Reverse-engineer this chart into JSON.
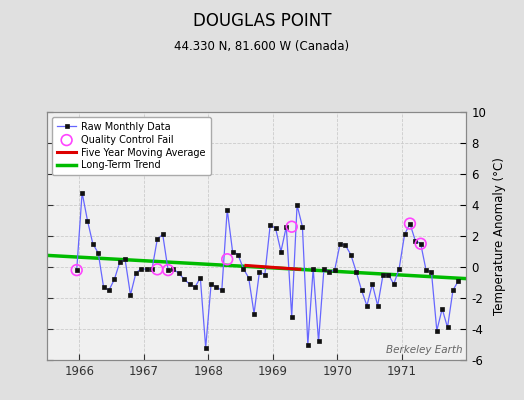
{
  "title": "DOUGLAS POINT",
  "subtitle": "44.330 N, 81.600 W (Canada)",
  "ylabel": "Temperature Anomaly (°C)",
  "watermark": "Berkeley Earth",
  "ylim": [
    -6,
    10
  ],
  "xlim": [
    1965.5,
    1972.0
  ],
  "xticks": [
    1966,
    1967,
    1968,
    1969,
    1970,
    1971
  ],
  "yticks": [
    -6,
    -4,
    -2,
    0,
    2,
    4,
    6,
    8,
    10
  ],
  "raw_x": [
    1965.958,
    1966.042,
    1966.125,
    1966.208,
    1966.292,
    1966.375,
    1966.458,
    1966.542,
    1966.625,
    1966.708,
    1966.792,
    1966.875,
    1966.958,
    1967.042,
    1967.125,
    1967.208,
    1967.292,
    1967.375,
    1967.458,
    1967.542,
    1967.625,
    1967.708,
    1967.792,
    1967.875,
    1967.958,
    1968.042,
    1968.125,
    1968.208,
    1968.292,
    1968.375,
    1968.458,
    1968.542,
    1968.625,
    1968.708,
    1968.792,
    1968.875,
    1968.958,
    1969.042,
    1969.125,
    1969.208,
    1969.292,
    1969.375,
    1969.458,
    1969.542,
    1969.625,
    1969.708,
    1969.792,
    1969.875,
    1969.958,
    1970.042,
    1970.125,
    1970.208,
    1970.292,
    1970.375,
    1970.458,
    1970.542,
    1970.625,
    1970.708,
    1970.792,
    1970.875,
    1970.958,
    1971.042,
    1971.125,
    1971.208,
    1971.292,
    1971.375,
    1971.458,
    1971.542,
    1971.625,
    1971.708,
    1971.792,
    1971.875
  ],
  "raw_y": [
    -0.2,
    4.8,
    3.0,
    1.5,
    0.9,
    -1.3,
    -1.5,
    -0.8,
    0.3,
    0.5,
    -1.8,
    -0.4,
    -0.1,
    -0.15,
    -0.15,
    1.8,
    2.1,
    -0.2,
    -0.15,
    -0.4,
    -0.8,
    -1.1,
    -1.3,
    -0.7,
    -5.2,
    -1.1,
    -1.3,
    -1.5,
    3.7,
    1.0,
    0.8,
    -0.1,
    -0.7,
    -3.0,
    -0.3,
    -0.5,
    2.7,
    2.5,
    1.0,
    2.6,
    -3.2,
    4.0,
    2.6,
    -5.0,
    -0.1,
    -4.8,
    -0.1,
    -0.3,
    -0.2,
    1.5,
    1.4,
    0.8,
    -0.3,
    -1.5,
    -2.5,
    -1.1,
    -2.5,
    -0.5,
    -0.5,
    -1.1,
    -0.1,
    2.1,
    2.8,
    1.7,
    1.5,
    -0.2,
    -0.3,
    -4.1,
    -2.7,
    -3.9,
    -1.5,
    -0.9
  ],
  "qc_fail_x": [
    1965.958,
    1967.208,
    1967.375,
    1968.292,
    1969.292,
    1971.125,
    1971.292
  ],
  "qc_fail_y": [
    -0.2,
    -0.15,
    -0.2,
    0.5,
    2.6,
    2.8,
    1.5
  ],
  "moving_avg_x": [
    1968.583,
    1968.75,
    1968.917,
    1969.083,
    1969.25,
    1969.417
  ],
  "moving_avg_y": [
    0.1,
    0.05,
    0.0,
    -0.05,
    -0.1,
    -0.15
  ],
  "trend_x": [
    1965.5,
    1972.0
  ],
  "trend_y": [
    0.75,
    -0.75
  ],
  "raw_line_color": "#6666ff",
  "raw_marker_color": "#111111",
  "qc_color": "#ff44ff",
  "moving_avg_color": "#dd0000",
  "trend_color": "#00bb00",
  "fig_bg": "#e0e0e0",
  "plot_bg": "#f0f0f0",
  "grid_color": "#cccccc"
}
